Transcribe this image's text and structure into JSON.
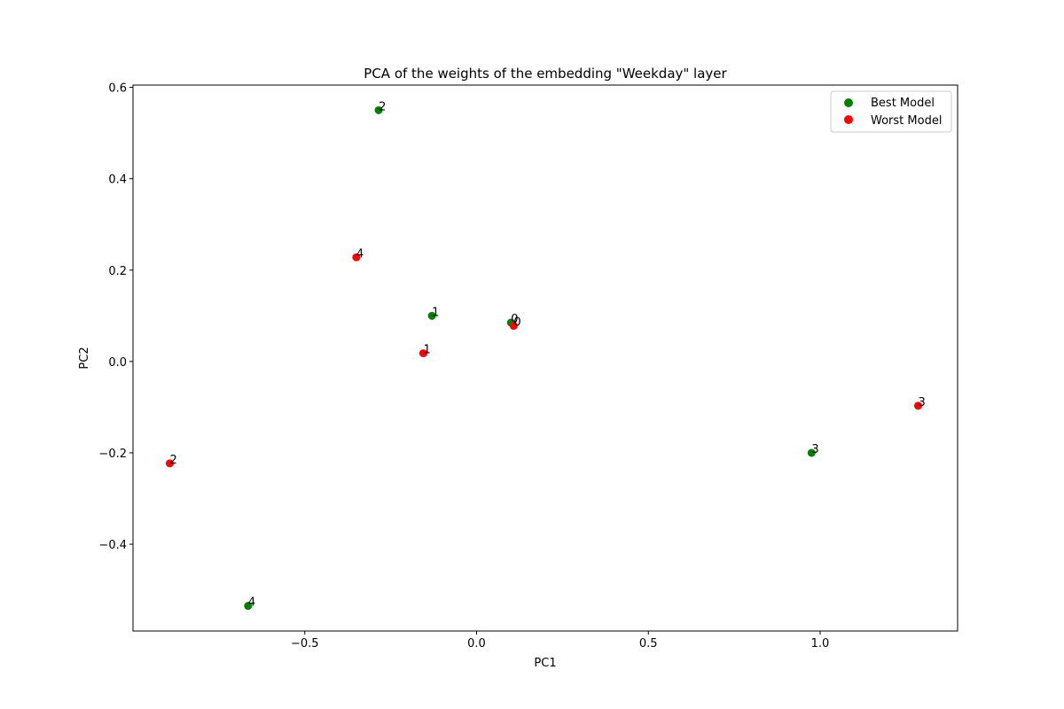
{
  "chart_data": {
    "type": "scatter",
    "title": "PCA of the weights of the embedding \"Weekday\" layer",
    "xlabel": "PC1",
    "ylabel": "PC2",
    "xlim": [
      -1.0,
      1.4
    ],
    "ylim": [
      -0.59,
      0.605
    ],
    "xticks": [
      -0.5,
      0.0,
      0.5,
      1.0
    ],
    "yticks": [
      -0.4,
      -0.2,
      0.0,
      0.2,
      0.4,
      0.6
    ],
    "xtick_labels": [
      "−0.5",
      "0.0",
      "0.5",
      "1.0"
    ],
    "ytick_labels": [
      "−0.4",
      "−0.2",
      "0.0",
      "0.2",
      "0.4",
      "0.6"
    ],
    "grid": false,
    "legend_position": "top-right",
    "series": [
      {
        "name": "Best Model",
        "color": "#008000",
        "points": [
          {
            "label": "0",
            "x": 0.1,
            "y": 0.085
          },
          {
            "label": "1",
            "x": -0.13,
            "y": 0.1
          },
          {
            "label": "2",
            "x": -0.285,
            "y": 0.55
          },
          {
            "label": "3",
            "x": 0.975,
            "y": -0.2
          },
          {
            "label": "4",
            "x": -0.665,
            "y": -0.535
          }
        ]
      },
      {
        "name": "Worst Model",
        "color": "#ff0000",
        "points": [
          {
            "label": "0",
            "x": 0.108,
            "y": 0.078
          },
          {
            "label": "1",
            "x": -0.155,
            "y": 0.018
          },
          {
            "label": "2",
            "x": -0.893,
            "y": -0.223
          },
          {
            "label": "3",
            "x": 1.285,
            "y": -0.097
          },
          {
            "label": "4",
            "x": -0.35,
            "y": 0.228
          }
        ]
      }
    ]
  }
}
